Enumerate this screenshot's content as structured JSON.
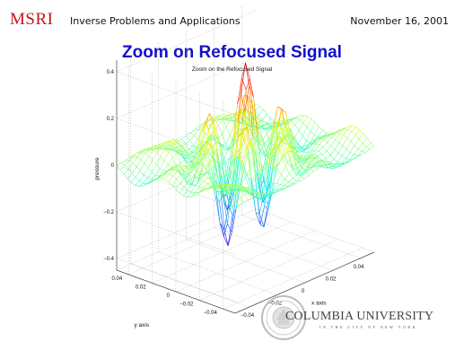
{
  "header": {
    "logo": "MSRI",
    "conference": "Inverse Problems and Applications",
    "date": "November 16, 2001"
  },
  "slide": {
    "title": "Zoom on Refocused Signal"
  },
  "footer": {
    "university": "COLUMBIA UNIVERSITY",
    "subtitle": "IN THE CITY OF NEW YORK"
  },
  "chart_data": {
    "type": "surface",
    "title": "Zoom on the Refocused Signal",
    "xlabel": "x axis",
    "ylabel": "y axis",
    "zlabel": "pressure",
    "xlim": [
      -0.05,
      0.05
    ],
    "ylim": [
      -0.05,
      0.05
    ],
    "zlim": [
      -0.45,
      0.45
    ],
    "x_ticks": [
      -0.04,
      -0.02,
      0,
      0.02,
      0.04
    ],
    "y_ticks": [
      -0.04,
      -0.02,
      0,
      0.02,
      0.04
    ],
    "z_ticks": [
      -0.4,
      -0.2,
      0,
      0.2,
      0.4
    ],
    "x_tick_labels": [
      "−0.04",
      "−0.02",
      "0",
      "0.02",
      "0.04"
    ],
    "y_tick_labels": [
      "−0.04",
      "−0.02",
      "0",
      "0.02",
      "0.04"
    ],
    "z_tick_labels": [
      "−0.4",
      "−0.2",
      "0",
      "0.2",
      "0.4"
    ],
    "grid": true,
    "colormap": "jet",
    "mesh_x_count": 33,
    "mesh_y_count": 33,
    "peak_amplitude": 0.4
  }
}
